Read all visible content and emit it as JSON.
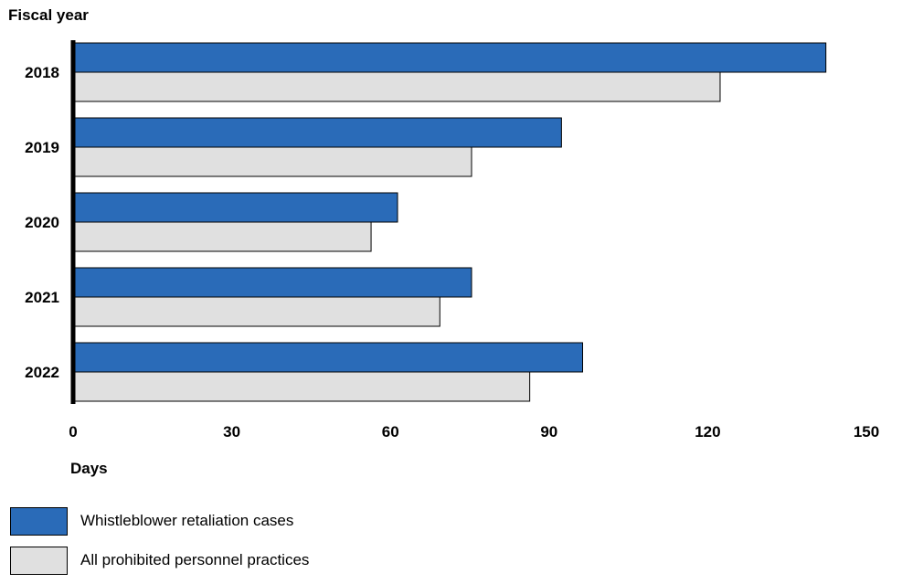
{
  "chart_data": {
    "type": "bar",
    "orientation": "horizontal",
    "ylabel": "Fiscal year",
    "xlabel": "Days",
    "categories": [
      "2018",
      "2019",
      "2020",
      "2021",
      "2022"
    ],
    "xlim": [
      0,
      150
    ],
    "xticks": [
      0,
      30,
      60,
      90,
      120,
      150
    ],
    "grid": false,
    "legend_placement": "bottom-left",
    "series": [
      {
        "name": "Whistleblower retaliation cases",
        "color": "#2a6bb8",
        "values": [
          142,
          92,
          61,
          75,
          96
        ]
      },
      {
        "name": "All prohibited personnel practices",
        "color": "#e0e0e0",
        "values": [
          122,
          75,
          56,
          69,
          86
        ]
      }
    ]
  }
}
